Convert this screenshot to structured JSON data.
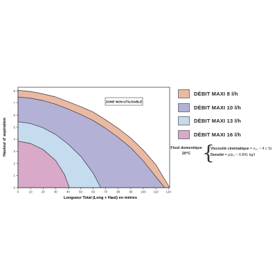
{
  "chart_data": {
    "type": "area",
    "xlabel": "Longueur Total (Long + Haut) en mètres",
    "ylabel": "Hauteur d' aspiration",
    "xticks": [
      0,
      10,
      20,
      30,
      40,
      50,
      60,
      70,
      80,
      90,
      100,
      110,
      120
    ],
    "yticks": [
      0,
      1,
      2,
      3,
      4,
      5,
      6,
      7,
      8
    ],
    "xlim": [
      0,
      121
    ],
    "ylim": [
      0,
      8.3
    ],
    "annotation": "ZONE NON UTILISABLE",
    "series": [
      {
        "name": "DÉBIT MAXI 8 l/h",
        "color": "#e9b9a2",
        "x": [
          0,
          10,
          20,
          30,
          40,
          50,
          60,
          70,
          80,
          90,
          100,
          110,
          121
        ],
        "y": [
          8.05,
          7.95,
          7.75,
          7.5,
          7.1,
          6.7,
          6.25,
          5.6,
          4.9,
          4.1,
          3.1,
          1.9,
          0
        ]
      },
      {
        "name": "DÉBIT MAXI 10 l/h",
        "color": "#b4b1d6",
        "x": [
          0,
          10,
          20,
          30,
          40,
          50,
          60,
          70,
          80,
          90,
          100,
          110,
          117
        ],
        "y": [
          7.5,
          7.4,
          7.2,
          6.9,
          6.5,
          6.05,
          5.55,
          4.9,
          4.15,
          3.3,
          2.2,
          0.9,
          0
        ]
      },
      {
        "name": "DÉBIT MAXI 13 l/h",
        "color": "#c5dcee",
        "x": [
          0,
          10,
          20,
          30,
          40,
          50,
          60,
          66
        ],
        "y": [
          5.45,
          5.3,
          4.95,
          4.4,
          3.6,
          2.6,
          1.2,
          0
        ]
      },
      {
        "name": "DÉBIT MAXI 16 l/h",
        "color": "#d8a9c8",
        "x": [
          0,
          10,
          20,
          30,
          37,
          41
        ],
        "y": [
          3.85,
          3.65,
          3.15,
          2.25,
          1.1,
          0
        ]
      }
    ]
  },
  "fuel": {
    "title_line1": "Fioul domestique",
    "title_line2": "20°C",
    "viscosity_label": "Viscosité cinématique",
    "viscosity_value": "= ν₂₀ ~ 4 c St",
    "density_label": "Densité",
    "density_value": "= ρ/ρ₀ ~ 0,841 kg/l"
  }
}
